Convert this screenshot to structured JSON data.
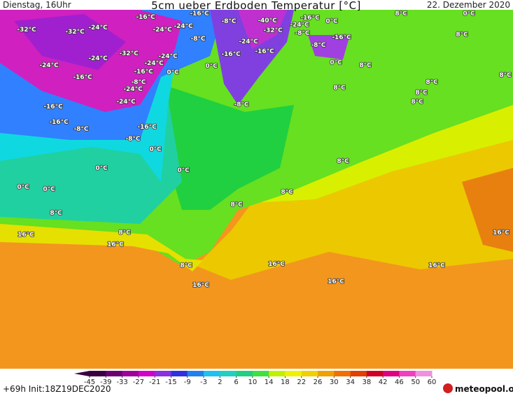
{
  "header": {
    "left": "Dienstag, 16Uhr",
    "title": "5cm ueber Erdboden Temperatur [°C]",
    "right": "22. Dezember 2020"
  },
  "map_labels": [
    "-32°C",
    "-32°C",
    "-24°C",
    "-16°C",
    "-24°C",
    "-24°C",
    "-16°C",
    "-8°C",
    "-40°C",
    "-24°C",
    "-32°C",
    "-8°C",
    "-16°C",
    "0°C",
    "8°C",
    "0°C",
    "8°C",
    "-8°C",
    "-24°C",
    "-16°C",
    "-8°C",
    "-16°C",
    "0°C",
    "-16°C",
    "-24°C",
    "-32°C",
    "-24°C",
    "-24°C",
    "0°C",
    "-24°C",
    "-16°C",
    "0°C",
    "-16°C",
    "-8°C",
    "-24°C",
    "-8°C",
    "-24°C",
    "8°C",
    "8°C",
    "8°C",
    "8°C",
    "8°C",
    "8°C",
    "-16°C",
    "-16°C",
    "-8°C",
    "-16°C",
    "-8°C",
    "0°C",
    "0°C",
    "0°C",
    "8°C",
    "0°C",
    "0°C",
    "8°C",
    "8°C",
    "8°C",
    "8°C",
    "16°C",
    "16°C",
    "16°C",
    "8°C",
    "16°C",
    "16°C",
    "16°C",
    "16°C"
  ],
  "colorbar": {
    "ticks": [
      -45,
      -39,
      -33,
      -27,
      -21,
      -15,
      -9,
      -3,
      2,
      6,
      10,
      14,
      18,
      22,
      26,
      30,
      34,
      38,
      42,
      46,
      50,
      60
    ],
    "colors": [
      "#3a0040",
      "#6a0070",
      "#a0009a",
      "#d000c8",
      "#8a30e0",
      "#3030e0",
      "#2080f0",
      "#20c0f0",
      "#20d0c0",
      "#20d080",
      "#40e040",
      "#c0f000",
      "#f0f000",
      "#f0d000",
      "#f0a000",
      "#f07000",
      "#e04000",
      "#d00020",
      "#e00080",
      "#f040c0",
      "#f090e0"
    ]
  },
  "footer": {
    "run": "+69h Init:18Z19DEC2020",
    "logo": "meteopool.org"
  }
}
